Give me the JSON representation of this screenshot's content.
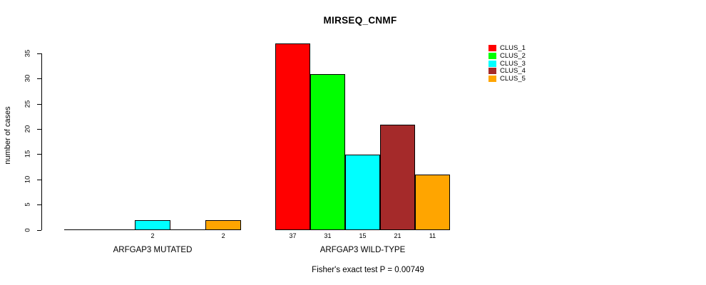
{
  "chart_data": {
    "type": "bar",
    "title": "MIRSEQ_CNMF",
    "ylabel": "number of cases",
    "xlabel": "",
    "ylim": [
      0,
      35
    ],
    "yticks": [
      0,
      5,
      10,
      15,
      20,
      25,
      30,
      35
    ],
    "grid": false,
    "legend_position": "top-right",
    "categories": [
      "ARFGAP3 MUTATED",
      "ARFGAP3 WILD-TYPE"
    ],
    "series": [
      {
        "name": "CLUS_1",
        "color": "#FF0000",
        "values": [
          0,
          37
        ]
      },
      {
        "name": "CLUS_2",
        "color": "#00FF00",
        "values": [
          0,
          31
        ]
      },
      {
        "name": "CLUS_3",
        "color": "#00FFFF",
        "values": [
          2,
          15
        ]
      },
      {
        "name": "CLUS_4",
        "color": "#A52A2A",
        "values": [
          0,
          21
        ]
      },
      {
        "name": "CLUS_5",
        "color": "#FFA500",
        "values": [
          2,
          11
        ]
      }
    ],
    "bar_value_labels": [
      [
        "",
        "",
        "2",
        "",
        "2"
      ],
      [
        "37",
        "31",
        "15",
        "21",
        "11"
      ]
    ],
    "annotation": "Fisher's exact test P = 0.00749"
  }
}
